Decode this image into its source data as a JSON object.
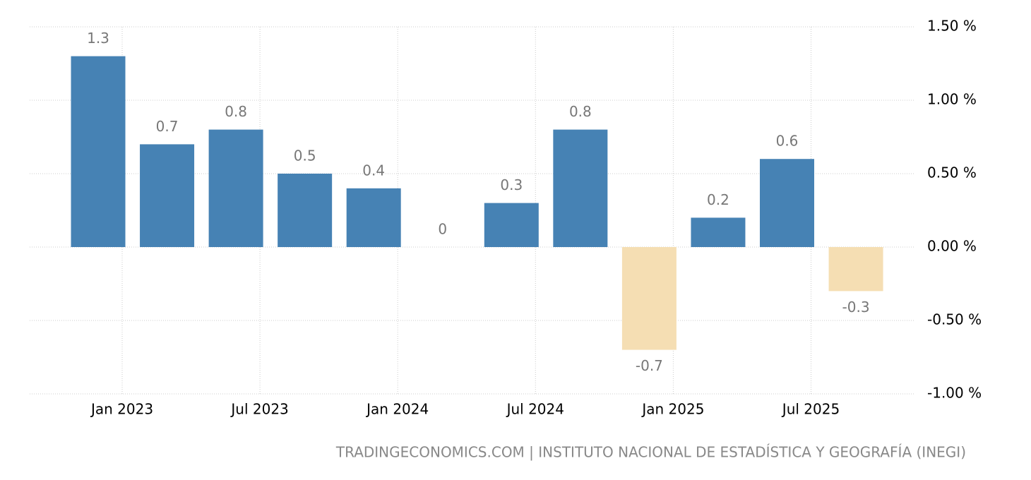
{
  "chart_data": {
    "type": "bar",
    "categories": [
      null,
      null,
      null,
      null,
      null,
      null,
      null,
      null,
      null,
      null,
      null,
      null
    ],
    "values": [
      1.3,
      0.7,
      0.8,
      0.5,
      0.4,
      0,
      0.3,
      0.8,
      -0.7,
      0.2,
      0.6,
      -0.3
    ],
    "color": "#4682b4",
    "negative_color": "#f5deb3",
    "xtick_labels": [
      "Jan 2023",
      "Jul 2023",
      "Jan 2024",
      "Jul 2024",
      "Jan 2025",
      "Jul 2025"
    ],
    "ylim": [
      -1,
      1.5
    ],
    "yticks": [
      {
        "value": -1,
        "label": "-1.00 %"
      },
      {
        "value": -0.5,
        "label": "-0.50 %"
      },
      {
        "value": 0,
        "label": "0.00 %"
      },
      {
        "value": 0.5,
        "label": "0.50 %"
      },
      {
        "value": 1,
        "label": "1.00 %"
      },
      {
        "value": 1.5,
        "label": "1.50 %"
      }
    ],
    "grid": true,
    "source": "TRADINGECONOMICS.COM | INSTITUTO NACIONAL DE ESTADÍSTICA Y GEOGRAFÍA (INEGI)"
  }
}
